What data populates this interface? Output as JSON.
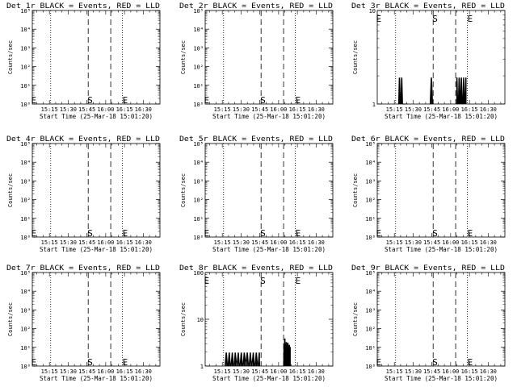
{
  "chart_data": [
    {
      "type": "line",
      "title": "Det 1r BLACK = Events, RED = LLD",
      "xlabel": "Start Time (25-Mar-18 15:01:20)",
      "ylabel": "Counts/sec",
      "yscale": "log",
      "ytick_labels": [
        "10⁰",
        "10¹",
        "10²",
        "10³",
        "10⁴",
        "10⁵"
      ],
      "ylim": [
        1,
        100000
      ],
      "xtick_labels": [
        "15:15",
        "15:30",
        "15:45",
        "16:00",
        "16:15",
        "16:30"
      ],
      "xlim_hours": [
        15.0222,
        16.7222
      ],
      "dotted_lines": [
        15.2667,
        16.2222
      ],
      "dashed_lines": [
        15.7667,
        16.0667
      ],
      "markers": [
        {
          "label": "E",
          "x": 15.0417
        },
        {
          "label": "S",
          "x": 15.7917
        },
        {
          "label": "E",
          "x": 16.2583
        }
      ],
      "series": []
    },
    {
      "type": "line",
      "title": "Det 2r BLACK = Events, RED = LLD",
      "xlabel": "Start Time (25-Mar-18 15:01:20)",
      "ylabel": "Counts/sec",
      "yscale": "log",
      "ytick_labels": [
        "10⁰",
        "10¹",
        "10²",
        "10³",
        "10⁴",
        "10⁵"
      ],
      "ylim": [
        1,
        100000
      ],
      "xtick_labels": [
        "15:15",
        "15:30",
        "15:45",
        "16:00",
        "16:15",
        "16:30"
      ],
      "xlim_hours": [
        15.0222,
        16.7222
      ],
      "dotted_lines": [
        15.2667,
        16.2222
      ],
      "dashed_lines": [
        15.7667,
        16.0667
      ],
      "markers": [
        {
          "label": "E",
          "x": 15.0417
        },
        {
          "label": "S",
          "x": 15.7917
        },
        {
          "label": "E",
          "x": 16.2583
        }
      ],
      "series": []
    },
    {
      "type": "line",
      "title": "Det 3r BLACK = Events, RED = LLD",
      "xlabel": "Start Time (25-Mar-18 15:01:20)",
      "ylabel": "Counts/sec",
      "yscale": "log",
      "ytick_labels": [
        "1",
        "10"
      ],
      "ylim": [
        1,
        10
      ],
      "xtick_labels": [
        "15:15",
        "15:30",
        "15:45",
        "16:00",
        "16:15",
        "16:30"
      ],
      "xlim_hours": [
        15.0222,
        16.7222
      ],
      "dotted_lines": [
        15.2667,
        16.2222
      ],
      "dashed_lines": [
        15.7667,
        16.0667
      ],
      "markers": [
        {
          "label": "E",
          "x": 15.0417
        },
        {
          "label": "S",
          "x": 15.7917
        },
        {
          "label": "E",
          "x": 16.2583
        }
      ],
      "series": [
        {
          "x": [
            15.3,
            15.315,
            15.33,
            15.345,
            15.36,
            15.375,
            15.39,
            15.405,
            15.42,
            15.72,
            15.74,
            15.76,
            16.08,
            16.095,
            16.11,
            16.125,
            16.14,
            16.155,
            16.17,
            16.185,
            16.2
          ],
          "y": [
            1,
            1.9,
            1.1,
            1.9,
            1,
            1,
            1,
            1,
            1,
            1,
            1.9,
            1,
            1.9,
            1,
            1.9,
            1.2,
            1.9,
            1,
            1.9,
            1.1,
            1.9
          ]
        }
      ]
    },
    {
      "type": "line",
      "title": "Det 4r BLACK = Events, RED = LLD",
      "xlabel": "Start Time (25-Mar-18 15:01:20)",
      "ylabel": "Counts/sec",
      "yscale": "log",
      "ytick_labels": [
        "10⁰",
        "10¹",
        "10²",
        "10³",
        "10⁴",
        "10⁵"
      ],
      "ylim": [
        1,
        100000
      ],
      "xtick_labels": [
        "15:15",
        "15:30",
        "15:45",
        "16:00",
        "16:15",
        "16:30"
      ],
      "xlim_hours": [
        15.0222,
        16.7222
      ],
      "dotted_lines": [
        15.2667,
        16.2222
      ],
      "dashed_lines": [
        15.7667,
        16.0667
      ],
      "markers": [
        {
          "label": "E",
          "x": 15.0417
        },
        {
          "label": "S",
          "x": 15.7917
        },
        {
          "label": "E",
          "x": 16.2583
        }
      ],
      "series": []
    },
    {
      "type": "line",
      "title": "Det 5r BLACK = Events, RED = LLD",
      "xlabel": "Start Time (25-Mar-18 15:01:20)",
      "ylabel": "Counts/sec",
      "yscale": "log",
      "ytick_labels": [
        "10⁰",
        "10¹",
        "10²",
        "10³",
        "10⁴",
        "10⁵"
      ],
      "ylim": [
        1,
        100000
      ],
      "xtick_labels": [
        "15:15",
        "15:30",
        "15:45",
        "16:00",
        "16:15",
        "16:30"
      ],
      "xlim_hours": [
        15.0222,
        16.7222
      ],
      "dotted_lines": [
        15.2667,
        16.2222
      ],
      "dashed_lines": [
        15.7667,
        16.0667
      ],
      "markers": [
        {
          "label": "E",
          "x": 15.0417
        },
        {
          "label": "S",
          "x": 15.7917
        },
        {
          "label": "E",
          "x": 16.2583
        }
      ],
      "series": []
    },
    {
      "type": "line",
      "title": "Det 6r BLACK = Events, RED = LLD",
      "xlabel": "Start Time (25-Mar-18 15:01:20)",
      "ylabel": "Counts/sec",
      "yscale": "log",
      "ytick_labels": [
        "10⁰",
        "10¹",
        "10²",
        "10³",
        "10⁴",
        "10⁵"
      ],
      "ylim": [
        1,
        100000
      ],
      "xtick_labels": [
        "15:15",
        "15:30",
        "15:45",
        "16:00",
        "16:15",
        "16:30"
      ],
      "xlim_hours": [
        15.0222,
        16.7222
      ],
      "dotted_lines": [
        15.2667,
        16.2222
      ],
      "dashed_lines": [
        15.7667,
        16.0667
      ],
      "markers": [
        {
          "label": "E",
          "x": 15.0417
        },
        {
          "label": "S",
          "x": 15.7917
        },
        {
          "label": "E",
          "x": 16.2583
        }
      ],
      "series": []
    },
    {
      "type": "line",
      "title": "Det 7r BLACK = Events, RED = LLD",
      "xlabel": "Start Time (25-Mar-18 15:01:20)",
      "ylabel": "Counts/sec",
      "yscale": "log",
      "ytick_labels": [
        "10⁰",
        "10¹",
        "10²",
        "10³",
        "10⁴",
        "10⁵"
      ],
      "ylim": [
        1,
        100000
      ],
      "xtick_labels": [
        "15:15",
        "15:30",
        "15:45",
        "16:00",
        "16:15",
        "16:30"
      ],
      "xlim_hours": [
        15.0222,
        16.7222
      ],
      "dotted_lines": [
        15.2667,
        16.2222
      ],
      "dashed_lines": [
        15.7667,
        16.0667
      ],
      "markers": [
        {
          "label": "E",
          "x": 15.0417
        },
        {
          "label": "S",
          "x": 15.7917
        },
        {
          "label": "E",
          "x": 16.2583
        }
      ],
      "series": []
    },
    {
      "type": "line",
      "title": "Det 8r BLACK = Events, RED = LLD",
      "xlabel": "Start Time (25-Mar-18 15:01:20)",
      "ylabel": "Counts/sec",
      "yscale": "log",
      "ytick_labels": [
        "1",
        "10",
        "100"
      ],
      "ylim": [
        1,
        100
      ],
      "xtick_labels": [
        "15:15",
        "15:30",
        "15:45",
        "16:00",
        "16:15",
        "16:30"
      ],
      "xlim_hours": [
        15.0222,
        16.7222
      ],
      "dotted_lines": [
        15.2667,
        16.2222
      ],
      "dashed_lines": [
        15.7667,
        16.0667
      ],
      "markers": [
        {
          "label": "E",
          "x": 15.0417
        },
        {
          "label": "S",
          "x": 15.7917
        },
        {
          "label": "E",
          "x": 16.2583
        }
      ],
      "series": [
        {
          "x": [
            15.28,
            15.3,
            15.32,
            15.34,
            15.36,
            15.38,
            15.4,
            15.42,
            15.44,
            15.46,
            15.48,
            15.5,
            15.52,
            15.54,
            15.56,
            15.58,
            15.6,
            15.62,
            15.64,
            15.66,
            15.68,
            15.7,
            15.72,
            15.74,
            16.06,
            16.07,
            16.08,
            16.09,
            16.1,
            16.11,
            16.12,
            16.13,
            16.14,
            16.15
          ],
          "y": [
            1,
            1.9,
            1,
            1.9,
            1,
            1.9,
            1,
            1.9,
            1.1,
            1.9,
            1,
            1.9,
            1,
            1.9,
            1.2,
            1.9,
            1,
            1.9,
            1.1,
            1.9,
            1,
            1.9,
            1,
            1.9,
            1,
            2.9,
            3.8,
            2.3,
            3.2,
            2.6,
            3.1,
            2.2,
            2.8,
            2.5
          ]
        }
      ]
    },
    {
      "type": "line",
      "title": "Det 9r BLACK = Events, RED = LLD",
      "xlabel": "Start Time (25-Mar-18 15:01:20)",
      "ylabel": "Counts/sec",
      "yscale": "log",
      "ytick_labels": [
        "10⁰",
        "10¹",
        "10²",
        "10³",
        "10⁴",
        "10⁵"
      ],
      "ylim": [
        1,
        100000
      ],
      "xtick_labels": [
        "15:15",
        "15:30",
        "15:45",
        "16:00",
        "16:15",
        "16:30"
      ],
      "xlim_hours": [
        15.0222,
        16.7222
      ],
      "dotted_lines": [
        15.2667,
        16.2222
      ],
      "dashed_lines": [
        15.7667,
        16.0667
      ],
      "markers": [
        {
          "label": "E",
          "x": 15.0417
        },
        {
          "label": "S",
          "x": 15.7917
        },
        {
          "label": "E",
          "x": 16.2583
        }
      ],
      "series": []
    }
  ]
}
